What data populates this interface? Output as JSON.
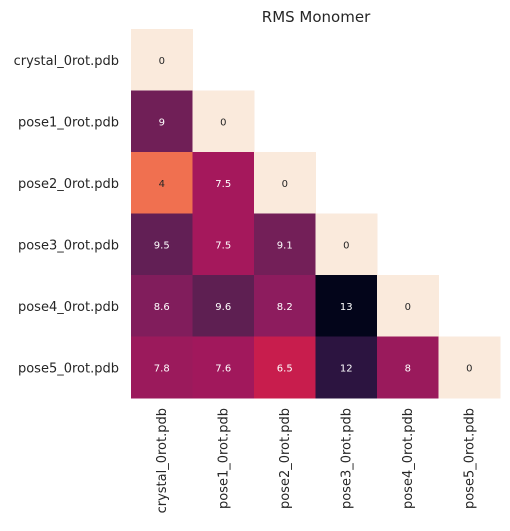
{
  "chart_data": {
    "type": "heatmap",
    "title": "RMS Monomer",
    "row_labels": [
      "crystal_0rot.pdb",
      "pose1_0rot.pdb",
      "pose2_0rot.pdb",
      "pose3_0rot.pdb",
      "pose4_0rot.pdb",
      "pose5_0rot.pdb"
    ],
    "col_labels": [
      "crystal_0rot.pdb",
      "pose1_0rot.pdb",
      "pose2_0rot.pdb",
      "pose3_0rot.pdb",
      "pose4_0rot.pdb",
      "pose5_0rot.pdb"
    ],
    "matrix": [
      [
        0,
        null,
        null,
        null,
        null,
        null
      ],
      [
        9,
        0,
        null,
        null,
        null,
        null
      ],
      [
        4,
        7.5,
        0,
        null,
        null,
        null
      ],
      [
        9.5,
        7.5,
        9.1,
        0,
        null,
        null
      ],
      [
        8.6,
        9.6,
        8.2,
        13,
        0,
        null
      ],
      [
        7.8,
        7.6,
        6.5,
        12,
        8,
        0
      ]
    ],
    "cell_colors": [
      [
        "#faeadc",
        null,
        null,
        null,
        null,
        null
      ],
      [
        "#701f57",
        "#faeadc",
        null,
        null,
        null,
        null
      ],
      [
        "#f07050",
        "#a5185c",
        "#faeadc",
        null,
        null,
        null
      ],
      [
        "#621f55",
        "#a5185c",
        "#731f58",
        "#faeadc",
        null,
        null
      ],
      [
        "#811d5c",
        "#5e1f52",
        "#8d1c5e",
        "#03051a",
        "#faeadc",
        null
      ],
      [
        "#9b1a5c",
        "#a1185c",
        "#c81d4d",
        "#2c1440",
        "#9a1a5c",
        "#faeadc"
      ]
    ],
    "colormap": "rocket",
    "mask": "upper-triangle",
    "grid": false,
    "colorbar": false
  }
}
